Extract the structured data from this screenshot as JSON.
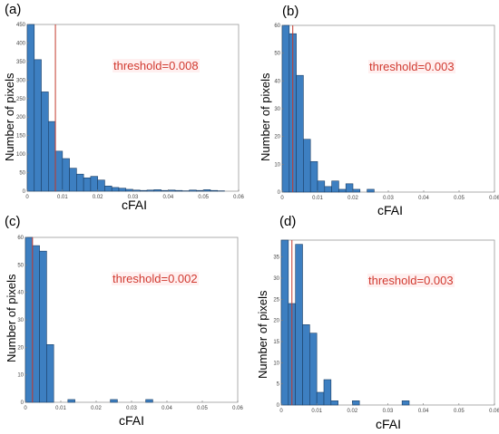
{
  "chart_data": [
    {
      "type": "bar",
      "panel_label": "(a)",
      "xlabel": "cFAI",
      "ylabel": "Number of pixels",
      "annotation": "threshold=0.008",
      "threshold": 0.008,
      "xlim": [
        0,
        0.06
      ],
      "ylim": [
        0,
        450
      ],
      "xticks": [
        0,
        0.01,
        0.02,
        0.03,
        0.04,
        0.05,
        0.06
      ],
      "xtick_labels": [
        "0",
        "0.01",
        "0.02",
        "0.03",
        "0.04",
        "0.05",
        "0.06"
      ],
      "yticks": [
        0,
        50,
        100,
        150,
        200,
        250,
        300,
        350,
        400,
        450
      ],
      "ytick_labels": [
        "0",
        "50",
        "100",
        "150",
        "200",
        "250",
        "300",
        "350",
        "400",
        "450"
      ],
      "bin_width": 0.002,
      "values": [
        450,
        355,
        268,
        188,
        108,
        88,
        62,
        46,
        36,
        40,
        30,
        14,
        10,
        8,
        5,
        3,
        2,
        3,
        4,
        2,
        3,
        2,
        1,
        3,
        2,
        4,
        2,
        1,
        0,
        0
      ]
    },
    {
      "type": "bar",
      "panel_label": "(b)",
      "xlabel": "cFAI",
      "ylabel": "Number of pixels",
      "annotation": "threshold=0.003",
      "threshold": 0.003,
      "xlim": [
        0,
        0.06
      ],
      "ylim": [
        0,
        60
      ],
      "xticks": [
        0,
        0.01,
        0.02,
        0.03,
        0.04,
        0.05,
        0.06
      ],
      "xtick_labels": [
        "0",
        "0.01",
        "0.02",
        "0.03",
        "0.04",
        "0.05",
        "0.06"
      ],
      "yticks": [
        0,
        10,
        20,
        30,
        40,
        50,
        60
      ],
      "ytick_labels": [
        "0",
        "10",
        "20",
        "30",
        "40",
        "50",
        "60"
      ],
      "bin_width": 0.002,
      "values": [
        60,
        57,
        42,
        19,
        11,
        4,
        2,
        4,
        1,
        3,
        1,
        0,
        1,
        0,
        0,
        0,
        0,
        0,
        0,
        0,
        0,
        0,
        0,
        0,
        0,
        0,
        0,
        0,
        0,
        0
      ]
    },
    {
      "type": "bar",
      "panel_label": "(c)",
      "xlabel": "cFAI",
      "ylabel": "Number of pixels",
      "annotation": "threshold=0.002",
      "threshold": 0.002,
      "xlim": [
        0,
        0.06
      ],
      "ylim": [
        0,
        60
      ],
      "xticks": [
        0,
        0.01,
        0.02,
        0.03,
        0.04,
        0.05,
        0.06
      ],
      "xtick_labels": [
        "0",
        "0.01",
        "0.02",
        "0.03",
        "0.04",
        "0.05",
        "0.06"
      ],
      "yticks": [
        0,
        10,
        20,
        30,
        40,
        50,
        60
      ],
      "ytick_labels": [
        "0",
        "10",
        "20",
        "30",
        "40",
        "50",
        "60"
      ],
      "bin_width": 0.002,
      "values": [
        60,
        57,
        55,
        21,
        0,
        0,
        1,
        0,
        0,
        0,
        0,
        0,
        1,
        0,
        0,
        0,
        0,
        1,
        0,
        0,
        0,
        0,
        0,
        0,
        0,
        0,
        0,
        0,
        0,
        0
      ]
    },
    {
      "type": "bar",
      "panel_label": "(d)",
      "xlabel": "cFAI",
      "ylabel": "Number of pixels",
      "annotation": "threshold=0.003",
      "threshold": 0.003,
      "xlim": [
        0,
        0.06
      ],
      "ylim": [
        0,
        39
      ],
      "xticks": [
        0,
        0.01,
        0.02,
        0.03,
        0.04,
        0.05,
        0.06
      ],
      "xtick_labels": [
        "0",
        "0.01",
        "0.02",
        "0.03",
        "0.04",
        "0.05",
        "0.06"
      ],
      "yticks": [
        0,
        5,
        10,
        15,
        20,
        25,
        30,
        35
      ],
      "ytick_labels": [
        "0",
        "5",
        "10",
        "15",
        "20",
        "25",
        "30",
        "35"
      ],
      "bin_width": 0.002,
      "values": [
        39,
        24,
        38,
        19,
        17,
        3,
        6,
        1,
        0,
        0,
        1,
        0,
        0,
        0,
        0,
        0,
        0,
        1,
        0,
        0,
        0,
        0,
        0,
        0,
        0,
        0,
        0,
        0,
        0,
        0
      ]
    }
  ]
}
